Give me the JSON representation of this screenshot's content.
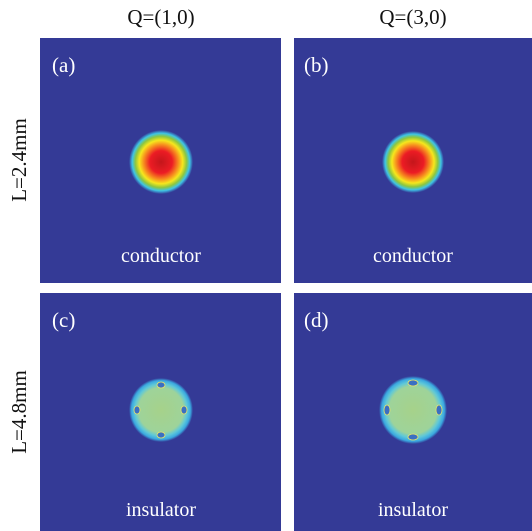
{
  "columns": [
    {
      "header": "Q=(1,0)"
    },
    {
      "header": "Q=(3,0)"
    }
  ],
  "rows": [
    {
      "label": "L=2.4mm"
    },
    {
      "label": "L=4.8mm"
    }
  ],
  "panels": [
    {
      "tag": "(a)",
      "caption": "conductor"
    },
    {
      "tag": "(b)",
      "caption": "conductor"
    },
    {
      "tag": "(c)",
      "caption": "insulator"
    },
    {
      "tag": "(d)",
      "caption": "insulator"
    }
  ]
}
